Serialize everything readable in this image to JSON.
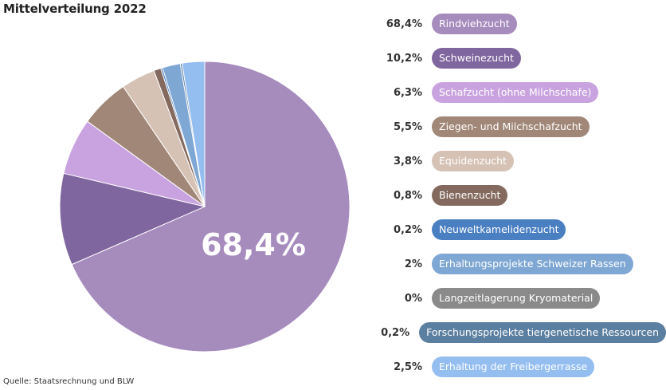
{
  "title": "Mittelverteilung 2022",
  "source": "Quelle: Staatsrechnung und BLW",
  "center_label": "68,4%",
  "chart_data": {
    "type": "pie",
    "title": "Mittelverteilung 2022",
    "slices": [
      {
        "label": "Rindviehzucht",
        "value": 68.4,
        "display": "68,4%",
        "color": "#a68bbd"
      },
      {
        "label": "Schweinezucht",
        "value": 10.2,
        "display": "10,2%",
        "color": "#80669e"
      },
      {
        "label": "Schafzucht (ohne Milchschafe)",
        "value": 6.3,
        "display": "6,3%",
        "color": "#c9a3e0"
      },
      {
        "label": "Ziegen- und Milchschafzucht",
        "value": 5.5,
        "display": "5,5%",
        "color": "#a08777"
      },
      {
        "label": "Equidenzucht",
        "value": 3.8,
        "display": "3,8%",
        "color": "#d6c2b5"
      },
      {
        "label": "Bienenzucht",
        "value": 0.8,
        "display": "0,8%",
        "color": "#846a5e"
      },
      {
        "label": "Neuweltkamelidenzucht",
        "value": 0.2,
        "display": "0,2%",
        "color": "#4a7fc1"
      },
      {
        "label": "Erhaltungsprojekte Schweizer Rassen",
        "value": 2.0,
        "display": "2%",
        "color": "#7fa7d3"
      },
      {
        "label": "Langzeitlagerung Kryomaterial",
        "value": 0.0,
        "display": "0%",
        "color": "#8a8a8a"
      },
      {
        "label": "Forschungsprojekte tiergenetische Ressourcen",
        "value": 0.2,
        "display": "0,2%",
        "color": "#5b7fa0"
      },
      {
        "label": "Erhaltung der Freibergerrasse",
        "value": 2.5,
        "display": "2,5%",
        "color": "#94bdf0"
      }
    ]
  }
}
